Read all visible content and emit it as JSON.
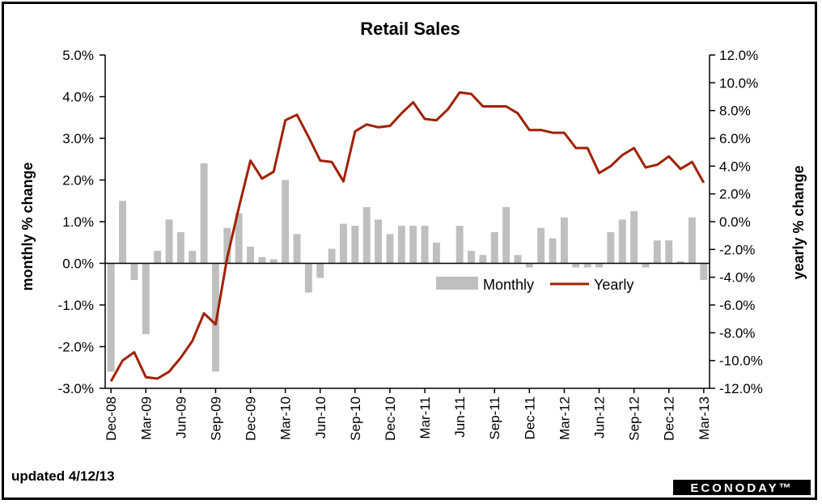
{
  "chart_data": {
    "type": "bar+line",
    "title": "Retail Sales",
    "ylabel_left": "monthly % change",
    "ylabel_right": "yearly % change",
    "ylim_left": [
      -3.0,
      5.0
    ],
    "ylim_right": [
      -12.0,
      12.0
    ],
    "yticks_left": [
      "-3.0%",
      "-2.0%",
      "-1.0%",
      "0.0%",
      "1.0%",
      "2.0%",
      "3.0%",
      "4.0%",
      "5.0%"
    ],
    "yticks_right": [
      "-12.0%",
      "-10.0%",
      "-8.0%",
      "-6.0%",
      "-4.0%",
      "-2.0%",
      "0.0%",
      "2.0%",
      "4.0%",
      "6.0%",
      "8.0%",
      "10.0%",
      "12.0%"
    ],
    "xtick_labels": [
      "Dec-08",
      "Mar-09",
      "Jun-09",
      "Sep-09",
      "Dec-09",
      "Mar-10",
      "Jun-10",
      "Sep-10",
      "Dec-10",
      "Mar-11",
      "Jun-11",
      "Sep-11",
      "Dec-11",
      "Mar-12",
      "Jun-12",
      "Sep-12",
      "Dec-12",
      "Mar-13"
    ],
    "legend_position": "middle-right",
    "grid": false,
    "series": [
      {
        "name": "Monthly",
        "type": "bar",
        "axis": "left",
        "color": "#bfbfbf",
        "x": [
          "Dec-08",
          "Jan-09",
          "Feb-09",
          "Mar-09",
          "Apr-09",
          "May-09",
          "Jun-09",
          "Jul-09",
          "Aug-09",
          "Sep-09",
          "Oct-09",
          "Nov-09",
          "Dec-09",
          "Jan-10",
          "Feb-10",
          "Mar-10",
          "Apr-10",
          "May-10",
          "Jun-10",
          "Jul-10",
          "Aug-10",
          "Sep-10",
          "Oct-10",
          "Nov-10",
          "Dec-10",
          "Jan-11",
          "Feb-11",
          "Mar-11",
          "Apr-11",
          "May-11",
          "Jun-11",
          "Jul-11",
          "Aug-11",
          "Sep-11",
          "Oct-11",
          "Nov-11",
          "Dec-11",
          "Jan-12",
          "Feb-12",
          "Mar-12",
          "Apr-12",
          "May-12",
          "Jun-12",
          "Jul-12",
          "Aug-12",
          "Sep-12",
          "Oct-12",
          "Nov-12",
          "Dec-12",
          "Jan-13",
          "Feb-13",
          "Mar-13"
        ],
        "values": [
          -2.6,
          1.5,
          -0.4,
          -1.7,
          0.3,
          1.05,
          0.75,
          0.3,
          2.4,
          -2.6,
          0.85,
          1.2,
          0.4,
          0.15,
          0.1,
          2.0,
          0.7,
          -0.7,
          -0.35,
          0.35,
          0.95,
          0.9,
          1.35,
          1.05,
          0.7,
          0.9,
          0.9,
          0.9,
          0.5,
          0.0,
          0.9,
          0.3,
          0.2,
          0.75,
          1.35,
          0.2,
          -0.1,
          0.85,
          0.6,
          1.1,
          -0.1,
          -0.1,
          -0.1,
          0.75,
          1.05,
          1.25,
          -0.1,
          0.55,
          0.55,
          0.05,
          1.1,
          -0.4
        ]
      },
      {
        "name": "Yearly",
        "type": "line",
        "axis": "right",
        "color": "#a02000",
        "x": [
          "Dec-08",
          "Jan-09",
          "Feb-09",
          "Mar-09",
          "Apr-09",
          "May-09",
          "Jun-09",
          "Jul-09",
          "Aug-09",
          "Sep-09",
          "Oct-09",
          "Nov-09",
          "Dec-09",
          "Jan-10",
          "Feb-10",
          "Mar-10",
          "Apr-10",
          "May-10",
          "Jun-10",
          "Jul-10",
          "Aug-10",
          "Sep-10",
          "Oct-10",
          "Nov-10",
          "Dec-10",
          "Jan-11",
          "Feb-11",
          "Mar-11",
          "Apr-11",
          "May-11",
          "Jun-11",
          "Jul-11",
          "Aug-11",
          "Sep-11",
          "Oct-11",
          "Nov-11",
          "Dec-11",
          "Jan-12",
          "Feb-12",
          "Mar-12",
          "Apr-12",
          "May-12",
          "Jun-12",
          "Jul-12",
          "Aug-12",
          "Sep-12",
          "Oct-12",
          "Nov-12",
          "Dec-12",
          "Jan-13",
          "Feb-13",
          "Mar-13"
        ],
        "values": [
          -11.5,
          -10.0,
          -9.4,
          -11.2,
          -11.3,
          -10.8,
          -9.8,
          -8.6,
          -6.6,
          -7.4,
          -2.6,
          1.0,
          4.4,
          3.1,
          3.6,
          7.3,
          7.7,
          6.1,
          4.4,
          4.3,
          2.9,
          6.5,
          7.0,
          6.8,
          6.9,
          7.8,
          8.6,
          7.4,
          7.3,
          8.1,
          9.3,
          9.2,
          8.3,
          8.3,
          8.3,
          7.8,
          6.6,
          6.6,
          6.4,
          6.4,
          5.3,
          5.3,
          3.5,
          4.0,
          4.8,
          5.3,
          3.9,
          4.1,
          4.7,
          3.8,
          4.3,
          2.8
        ]
      }
    ]
  },
  "footer": {
    "updated_text": "updated 4/12/13",
    "logo_text": "ECONODAY™"
  }
}
